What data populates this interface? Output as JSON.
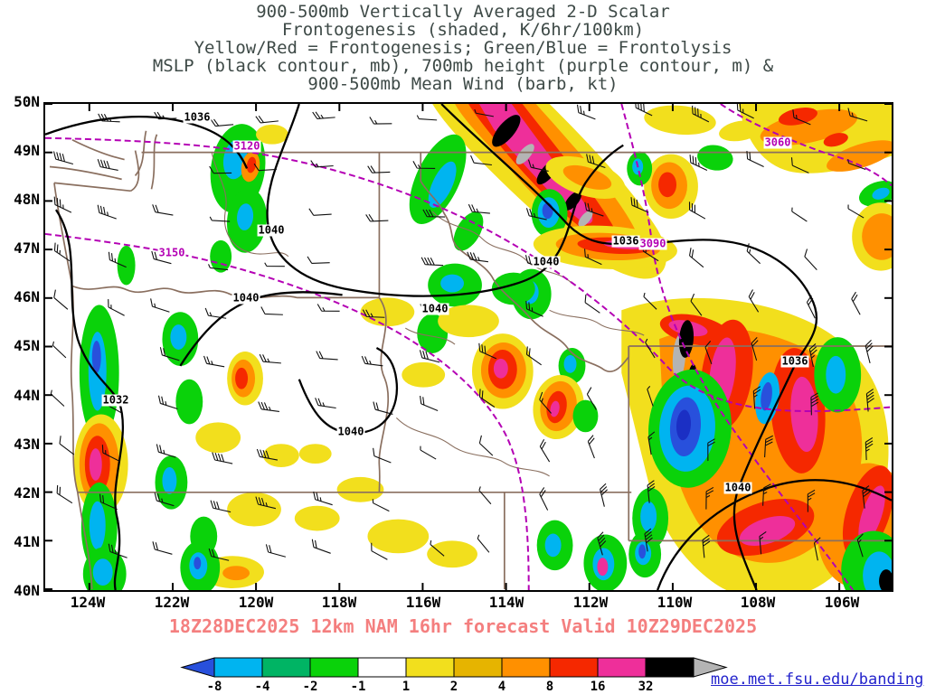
{
  "title": {
    "line1": "900-500mb Vertically Averaged 2-D Scalar",
    "line2": "Frontogenesis (shaded, K/6hr/100km)",
    "line3": "Yellow/Red = Frontogenesis;  Green/Blue = Frontolysis",
    "line4": "MSLP (black contour, mb), 700mb height (purple contour, m) &",
    "line5": "900-500mb Mean Wind (barb, kt)"
  },
  "axes": {
    "lat": [
      "50N",
      "49N",
      "48N",
      "47N",
      "46N",
      "45N",
      "44N",
      "43N",
      "42N",
      "41N",
      "40N"
    ],
    "lon": [
      "124W",
      "122W",
      "120W",
      "118W",
      "116W",
      "114W",
      "112W",
      "110W",
      "108W",
      "106W"
    ]
  },
  "map": {
    "mslp_labels": [
      "1036",
      "1040",
      "1040",
      "1040",
      "1040",
      "1036",
      "1032",
      "1040",
      "1036",
      "1040"
    ],
    "height_labels": [
      "3120",
      "3150",
      "3090",
      "3060"
    ],
    "shaded_field": "frontogenesis",
    "shaded_units": "K/6hr/100km"
  },
  "caption": "18Z28DEC2025 12km NAM 16hr forecast Valid 10Z29DEC2025",
  "colorbar": {
    "tick_labels": [
      "-8",
      "-4",
      "-2",
      "-1",
      "1",
      "2",
      "4",
      "8",
      "16",
      "32"
    ],
    "segment_colors": [
      "#00b4f0",
      "#00b464",
      "#0ad20a",
      "#ffffff",
      "#f2df1d",
      "#e6b400",
      "#ff9000",
      "#f52800",
      "#ee2f9a",
      "#000000"
    ],
    "left_arrow_color": "#2850dc",
    "right_arrow_color": "#b4b4b4"
  },
  "link": "moe.met.fsu.edu/banding",
  "colors": {
    "title_text": "#3e4a47",
    "caption_text": "#f47f7f",
    "state_border": "#8a6f5f",
    "mslp_contour": "#000000",
    "height_contour": "#b400b4",
    "link_text": "#2323cc"
  }
}
